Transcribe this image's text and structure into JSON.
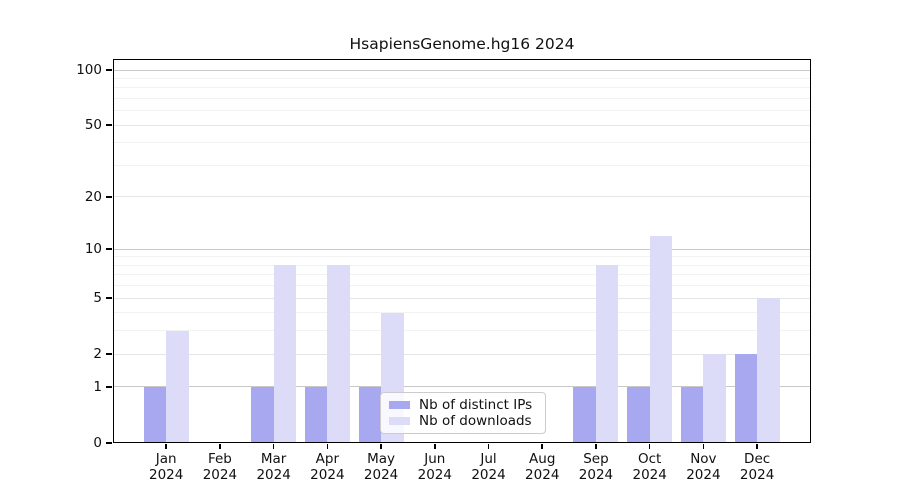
{
  "chart_data": {
    "type": "bar",
    "title": "HsapiensGenome.hg16 2024",
    "year": "2024",
    "categories": [
      "Jan",
      "Feb",
      "Mar",
      "Apr",
      "May",
      "Jun",
      "Jul",
      "Aug",
      "Sep",
      "Oct",
      "Nov",
      "Dec"
    ],
    "series": [
      {
        "name": "Nb of distinct IPs",
        "color": "#a8a8f0",
        "values": [
          1,
          0,
          1,
          1,
          1,
          0,
          0,
          0,
          1,
          1,
          1,
          2
        ]
      },
      {
        "name": "Nb of downloads",
        "color": "#dcdcf9",
        "values": [
          3,
          0,
          8,
          8,
          4,
          0,
          0,
          0,
          8,
          12,
          2,
          5
        ]
      }
    ],
    "y_axis": {
      "scale": "log1p",
      "ticks": [
        0,
        1,
        2,
        5,
        10,
        20,
        50,
        100
      ],
      "ylim": [
        0,
        115
      ]
    },
    "grid": true,
    "legend_position": "lower-center-inside"
  }
}
